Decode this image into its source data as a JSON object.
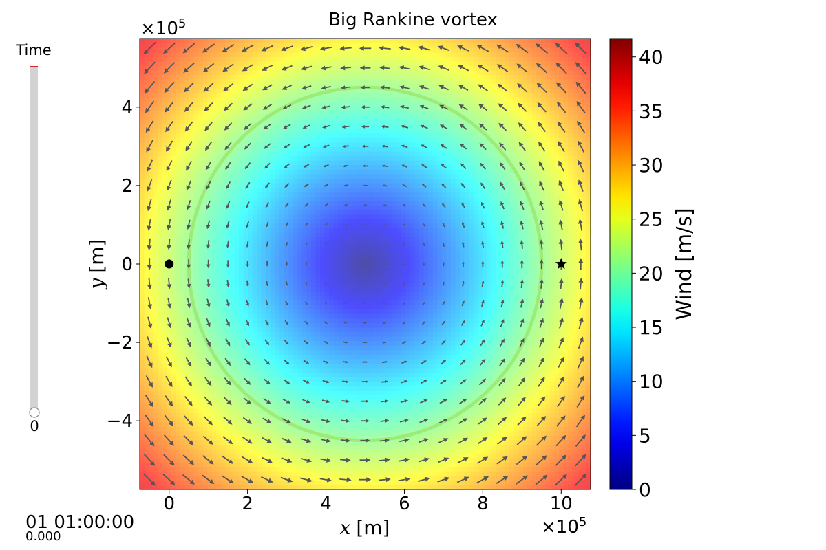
{
  "chart_data": {
    "type": "heatmap",
    "title": "Big Rankine vortex",
    "xlabel_var": "x",
    "xlabel_unit": "[m]",
    "ylabel_var": "y",
    "ylabel_unit": "[m]",
    "x_offset_label": "×10",
    "x_offset_exp": "5",
    "y_offset_label": "×10",
    "y_offset_exp": "5",
    "xlim": [
      -0.75,
      10.75
    ],
    "ylim": [
      -5.75,
      5.75
    ],
    "x_ticks": [
      0,
      2,
      4,
      6,
      8,
      10
    ],
    "y_ticks": [
      -4,
      -2,
      0,
      2,
      4
    ],
    "x_tick_labels": [
      "0",
      "2",
      "4",
      "6",
      "8",
      "10"
    ],
    "y_tick_labels": [
      "−4",
      "−2",
      "0",
      "2",
      "4"
    ],
    "vortex_center": [
      5,
      0
    ],
    "radius_of_max_wind": 4.5,
    "max_wind": 21,
    "colorbar": {
      "label": "Wind [m/s]",
      "min": 0,
      "max": 41.7,
      "ticks": [
        0,
        5,
        10,
        15,
        20,
        25,
        30,
        35,
        40
      ],
      "tick_labels": [
        "0",
        "5",
        "10",
        "15",
        "20",
        "25",
        "30",
        "35",
        "40"
      ],
      "colormap": "jet"
    },
    "markers": [
      {
        "kind": "circle",
        "x": 0,
        "y": 0,
        "color": "#000000"
      },
      {
        "kind": "star",
        "x": 10,
        "y": 0,
        "color": "#000000"
      }
    ],
    "arrow_color": "#555555",
    "circle_color": "#9be870",
    "heat_alpha": 0.7
  },
  "time_slider": {
    "label": "Time",
    "value_label": "0",
    "value": 0,
    "track_color": "#d3d3d3",
    "fill_color": "#d62728"
  },
  "timestamp": {
    "datetime": "01 01:00:00",
    "seconds": "0.000"
  }
}
